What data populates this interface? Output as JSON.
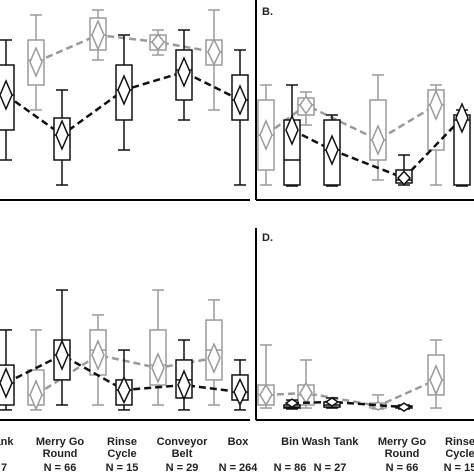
{
  "chart_data": [
    {
      "type": "box",
      "categories": [
        null,
        null,
        null,
        null,
        null
      ],
      "ylim": [
        0,
        100
      ],
      "series": [
        {
          "color": "#9a9a9a",
          "values": [
            null,
            {
              "max": 92.5,
              "q3": 80,
              "median": 70,
              "q1": 57.5,
              "min": 45,
              "mean": 69
            },
            {
              "max": 95,
              "q3": 91,
              "median": 82.5,
              "q1": 75,
              "min": 70,
              "mean": 82.5
            },
            {
              "max": 85,
              "q3": 82.5,
              "median": 79,
              "q1": 75,
              "min": 72.5,
              "mean": 79
            },
            {
              "max": 95,
              "q3": 80,
              "median": 74,
              "q1": 67.5,
              "min": 45,
              "mean": 74
            }
          ]
        },
        {
          "color": "#111111",
          "values": [
            {
              "max": 80,
              "q3": 67.5,
              "median": 52.5,
              "q1": 35,
              "min": 20,
              "mean": 52.5
            },
            {
              "max": 55,
              "q3": 41,
              "median": 32.5,
              "q1": 20,
              "min": 7.5,
              "mean": 32.5
            },
            {
              "max": 82.5,
              "q3": 67.5,
              "median": 55,
              "q1": 40,
              "min": 25,
              "mean": 55
            },
            {
              "max": 85,
              "q3": 75,
              "median": 65,
              "q1": 50,
              "min": 40,
              "mean": 64
            },
            {
              "max": 75,
              "q3": 62.5,
              "median": 50,
              "q1": 40,
              "min": 7.5,
              "mean": 50
            }
          ]
        }
      ]
    },
    {
      "type": "box",
      "title": "B.",
      "categories": [
        null,
        null,
        null,
        null
      ],
      "ylim": [
        0,
        100
      ],
      "series": [
        {
          "color": "#9a9a9a",
          "values": [
            {
              "max": 57.5,
              "q3": 50,
              "median": 32.5,
              "q1": 15,
              "min": 7.5,
              "mean": 32.5
            },
            {
              "max": 54,
              "q3": 51,
              "median": 47.5,
              "q1": 42.5,
              "min": 37.5,
              "mean": 47.5
            },
            {
              "max": 62.5,
              "q3": 50,
              "median": 30,
              "q1": 20,
              "min": 10,
              "mean": 30
            },
            {
              "max": 57.5,
              "q3": 55,
              "median": 47.5,
              "q1": 25,
              "min": 7.5,
              "mean": 47.5
            }
          ]
        },
        {
          "color": "#111111",
          "values": [
            {
              "max": 57.5,
              "q3": 40,
              "median": 20,
              "q1": 7.5,
              "min": 7,
              "mean": 35
            },
            {
              "max": 42.5,
              "q3": 40,
              "median": 25,
              "q1": 7.5,
              "min": 7,
              "mean": 25
            },
            {
              "max": 22.5,
              "q3": 15,
              "median": 10,
              "q1": 8.5,
              "min": 7.5,
              "mean": 11
            },
            {
              "max": 45,
              "q3": 42.5,
              "median": 40,
              "q1": 7.5,
              "min": 7,
              "mean": 41
            }
          ]
        }
      ]
    },
    {
      "type": "box",
      "categories": [
        [
          "ank"
        ],
        [
          "Merry Go",
          "Round"
        ],
        [
          "Rinse",
          "Cycle"
        ],
        [
          "Conveyor",
          "Belt"
        ],
        [
          "Box"
        ]
      ],
      "n_labels": [
        "7",
        "N = 66",
        "N = 15",
        "N = 29",
        "N = 264"
      ],
      "ylim": [
        0,
        100
      ],
      "series": [
        {
          "color": "#9a9a9a",
          "values": [
            null,
            {
              "max": 47.4,
              "q3": 26.3,
              "median": 13.2,
              "q1": 7.9,
              "min": 5.3,
              "mean": 13.2
            },
            {
              "max": 55.3,
              "q3": 47.4,
              "median": 36.8,
              "q1": 23.7,
              "min": 7.9,
              "mean": 34.2
            },
            {
              "max": 68.4,
              "q3": 47.4,
              "median": 28.9,
              "q1": 18.4,
              "min": 7.9,
              "mean": 27.4
            },
            {
              "max": 63.2,
              "q3": 52.6,
              "median": 36.8,
              "q1": 21.1,
              "min": 7.9,
              "mean": 32.6
            }
          ]
        },
        {
          "color": "#111111",
          "values": [
            {
              "max": 47.4,
              "q3": 28.9,
              "median": 19.5,
              "q1": 7.9,
              "min": 5.3,
              "mean": 19.5
            },
            {
              "max": 68.4,
              "q3": 42.1,
              "median": 34.2,
              "q1": 21.1,
              "min": 7.9,
              "mean": 34.2
            },
            {
              "max": 36.8,
              "q3": 21.1,
              "median": 15.8,
              "q1": 7.9,
              "min": 5.3,
              "mean": 15.8
            },
            {
              "max": 42.1,
              "q3": 31.6,
              "median": 21.1,
              "q1": 11.6,
              "min": 5.3,
              "mean": 18.4
            },
            {
              "max": 31.6,
              "q3": 23.7,
              "median": 14.7,
              "q1": 10.5,
              "min": 5.3,
              "mean": 14.7
            }
          ]
        }
      ]
    },
    {
      "type": "box",
      "title": "D.",
      "categories": [
        [
          "Bin"
        ],
        [
          "Wash Tank"
        ],
        [
          "Merry Go",
          "Round"
        ],
        [
          "Rinse",
          "Cycle"
        ]
      ],
      "n_labels": [
        "N = 86",
        "N = 27",
        "N = 66",
        "N = 15"
      ],
      "ylim": [
        0,
        100
      ],
      "series": [
        {
          "color": "#9a9a9a",
          "values": [
            {
              "max": 39.5,
              "q3": 18.4,
              "median": 13.2,
              "q1": 7.9,
              "min": 6.3,
              "mean": 13.2
            },
            {
              "max": 31.6,
              "q3": 18.4,
              "median": 13.2,
              "q1": 7.9,
              "min": 6.3,
              "mean": 14.2
            },
            {
              "max": 13.2,
              "q3": 8.9,
              "median": 7.4,
              "q1": 6.3,
              "min": 5.8,
              "mean": 7.4
            },
            {
              "max": 42.1,
              "q3": 34.2,
              "median": 21.1,
              "q1": 13.2,
              "min": 6.3,
              "mean": 21.1
            }
          ]
        },
        {
          "color": "#111111",
          "values": [
            {
              "max": 10.5,
              "q3": 7.9,
              "median": 6.8,
              "q1": 6.3,
              "min": 5.8,
              "mean": 8.9
            },
            {
              "max": 11.6,
              "q3": 9.5,
              "median": 7.9,
              "q1": 6.8,
              "min": 6.3,
              "mean": 9.5
            },
            {
              "max": 7.9,
              "q3": 7.4,
              "median": 6.8,
              "q1": 6.3,
              "min": 5.8,
              "mean": 6.8
            },
            null
          ]
        }
      ]
    }
  ]
}
